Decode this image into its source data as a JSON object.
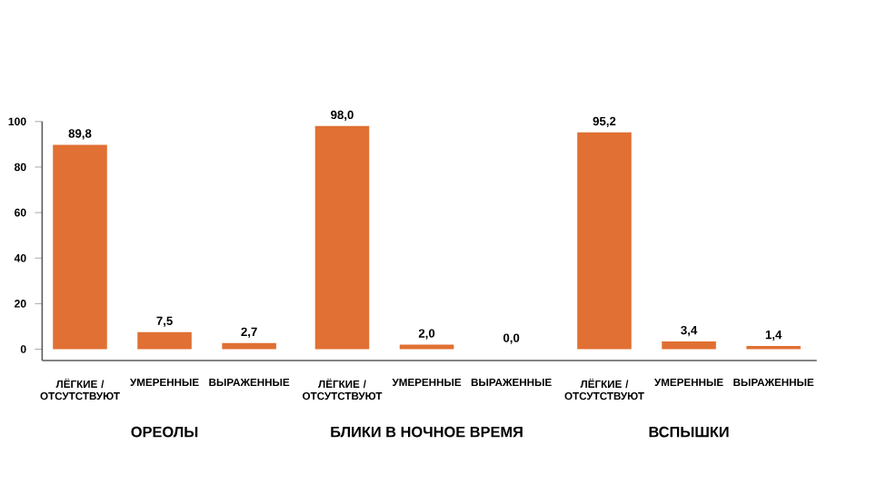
{
  "chart_data": {
    "type": "bar",
    "categories": [
      "ЛЁГКИЕ / ОТСУТСТВУЮТ",
      "УМЕРЕННЫЕ",
      "ВЫРАЖЕННЫЕ",
      "ЛЁГКИЕ / ОТСУТСТВУЮТ",
      "УМЕРЕННЫЕ",
      "ВЫРАЖЕННЫЕ",
      "ЛЁГКИЕ / ОТСУТСТВУЮТ",
      "УМЕРЕННЫЕ",
      "ВЫРАЖЕННЫЕ"
    ],
    "values": [
      89.8,
      7.5,
      2.7,
      98.0,
      2.0,
      0.0,
      95.2,
      3.4,
      1.4
    ],
    "value_labels": [
      "89,8",
      "7,5",
      "2,7",
      "98,0",
      "2,0",
      "0,0",
      "95,2",
      "3,4",
      "1,4"
    ],
    "color": "#e07033",
    "annotations": [
      "ОРЕОЛЫ",
      "БЛИКИ В НОЧНОЕ ВРЕМЯ",
      "ВСПЫШКИ"
    ],
    "ylim": [
      -5,
      100
    ],
    "yticks": [
      0,
      20,
      40,
      60,
      80,
      100
    ]
  }
}
